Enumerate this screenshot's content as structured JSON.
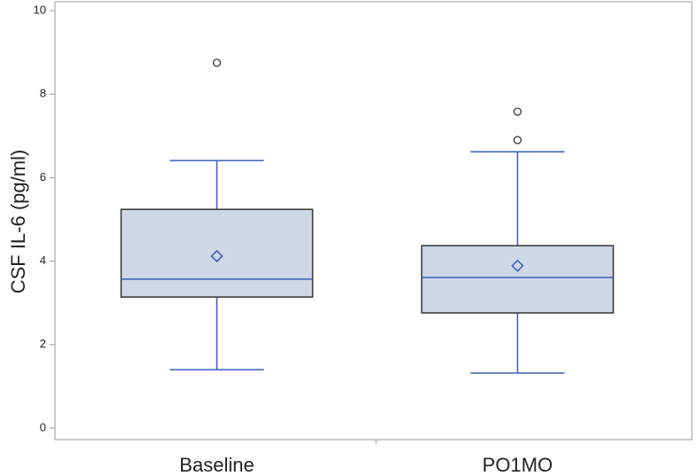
{
  "chart_data": {
    "type": "box",
    "y_label": "CSF IL-6 (pg/ml)",
    "categories": [
      "Baseline",
      "PO1MO"
    ],
    "boxes": [
      {
        "min": 1.4,
        "q1": 3.14,
        "median": 3.57,
        "q3": 5.24,
        "max": 6.41,
        "mean": 4.12,
        "outliers": [
          8.75
        ]
      },
      {
        "min": 1.32,
        "q1": 2.76,
        "median": 3.61,
        "q3": 4.37,
        "max": 6.62,
        "mean": 3.89,
        "outliers": [
          7.58,
          6.9
        ]
      }
    ],
    "fill_color": "#cdd7e6",
    "edge_color": "#333333",
    "whisker_color": "#3a5bb8",
    "ylim": [
      0,
      10
    ],
    "yticks": [
      0,
      2,
      4,
      6,
      8,
      10
    ],
    "grid": false
  }
}
